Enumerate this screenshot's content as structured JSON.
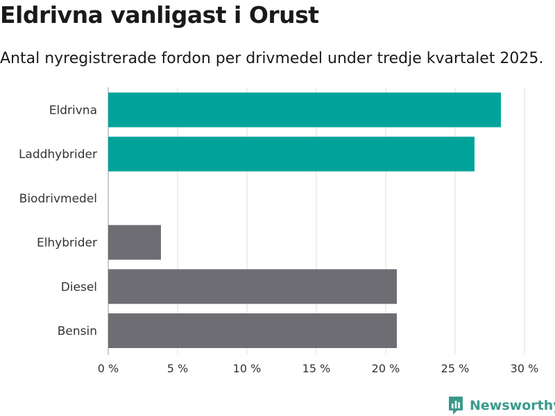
{
  "header": {
    "title": "Eldrivna vanligast i Orust",
    "subtitle": "Antal nyregistrerade fordon per drivmedel under tredje kvartalet 2025."
  },
  "brand": {
    "name": "Newsworthy",
    "color": "#3a9a8c"
  },
  "colors": {
    "highlight": "#00a39a",
    "default": "#6d6d73",
    "grid": "#dcdcdc"
  },
  "chart_data": {
    "type": "bar",
    "orientation": "horizontal",
    "title": "Eldrivna vanligast i Orust",
    "subtitle": "Antal nyregistrerade fordon per drivmedel under tredje kvartalet 2025.",
    "categories": [
      "Eldrivna",
      "Laddhybrider",
      "Biodrivmedel",
      "Elhybrider",
      "Diesel",
      "Bensin"
    ],
    "values": [
      28.3,
      26.4,
      0,
      3.8,
      20.8,
      20.8
    ],
    "highlighted": [
      true,
      true,
      false,
      false,
      false,
      false
    ],
    "xlim": [
      0,
      30
    ],
    "xticks": [
      0,
      5,
      10,
      15,
      20,
      25,
      30
    ],
    "xtick_labels": [
      "0 %",
      "5 %",
      "10 %",
      "15 %",
      "20 %",
      "25 %",
      "30 %"
    ],
    "grid": true,
    "xlabel": "",
    "ylabel": ""
  }
}
